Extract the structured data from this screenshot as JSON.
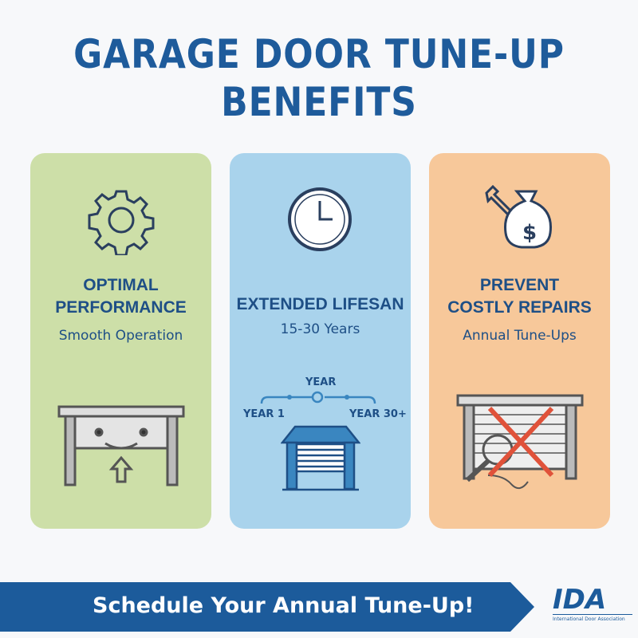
{
  "title": {
    "line1": "GARAGE DOOR TUNE-UP",
    "line2": "BENEFITS"
  },
  "cards": [
    {
      "heading1": "OPTIMAL",
      "heading2": "PERFORMANCE",
      "sub": "Smooth Operation",
      "icon": "gear-icon",
      "color": "#cddfa8"
    },
    {
      "heading1": "EXTENDED LIFESAN",
      "sub": "15-30 Years",
      "icon": "clock-icon",
      "color": "#a9d3ec",
      "timeline": {
        "start": "YEAR 1",
        "mid": "YEAR",
        "end": "YEAR 30+"
      }
    },
    {
      "heading1": "PREVENT",
      "heading2": "COSTLY REPAIRS",
      "sub": "Annual Tune-Ups",
      "icon": "money-bag-wrench-icon",
      "color": "#f7c89a"
    }
  ],
  "banner": {
    "text": "Schedule Your Annual Tune-Up!",
    "color": "#1c5b9b"
  },
  "logo": {
    "text": "IDA",
    "tagline": "International Door Association"
  }
}
